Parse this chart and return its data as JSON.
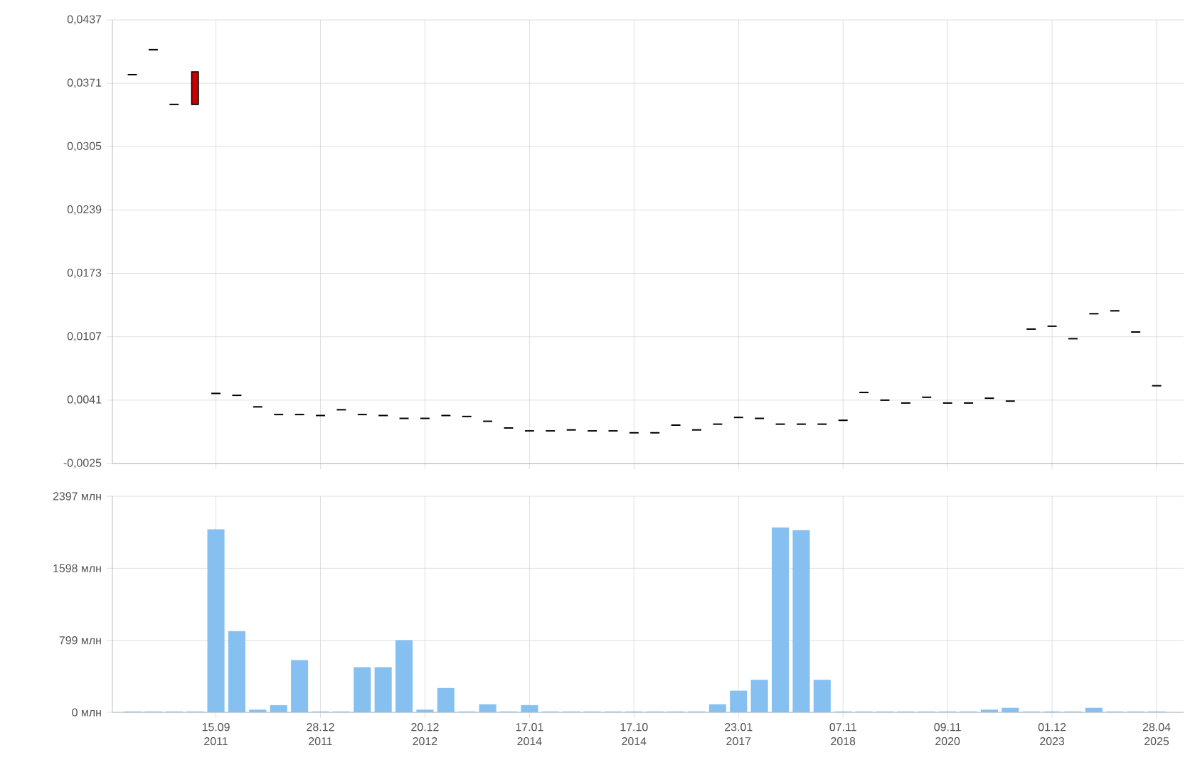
{
  "chart_data": [
    {
      "type": "candlestick",
      "categories": [
        null,
        null,
        null,
        null,
        null,
        null,
        null,
        null,
        null,
        null,
        null,
        null,
        null,
        null,
        null,
        null,
        null,
        null,
        null,
        null,
        null,
        null,
        null,
        null,
        null,
        null,
        null,
        null,
        null,
        null,
        null,
        null,
        null,
        null,
        null,
        null,
        null,
        null,
        null,
        null,
        null,
        null,
        null,
        null,
        null,
        null,
        null,
        null,
        null,
        null
      ],
      "ohlc": [
        [
          0.038,
          0.038,
          0.038,
          0.038
        ],
        [
          0.0406,
          0.0406,
          0.0406,
          0.0406
        ],
        [
          0.0349,
          0.0349,
          0.0349,
          0.0349
        ],
        [
          0.0383,
          0.0383,
          0.0349,
          0.0349
        ],
        [
          0.0048,
          0.0048,
          0.0048,
          0.0048
        ],
        [
          0.0046,
          0.0046,
          0.0046,
          0.0046
        ],
        [
          0.0034,
          0.0034,
          0.0034,
          0.0034
        ],
        [
          0.0026,
          0.0026,
          0.0026,
          0.0026
        ],
        [
          0.0026,
          0.0026,
          0.0026,
          0.0026
        ],
        [
          0.0025,
          0.0025,
          0.0025,
          0.0025
        ],
        [
          0.0031,
          0.0031,
          0.0031,
          0.0031
        ],
        [
          0.0026,
          0.0026,
          0.0026,
          0.0026
        ],
        [
          0.0025,
          0.0025,
          0.0025,
          0.0025
        ],
        [
          0.0022,
          0.0022,
          0.0022,
          0.0022
        ],
        [
          0.0022,
          0.0022,
          0.0022,
          0.0022
        ],
        [
          0.0025,
          0.0025,
          0.0025,
          0.0025
        ],
        [
          0.0024,
          0.0024,
          0.0024,
          0.0024
        ],
        [
          0.0019,
          0.0019,
          0.0019,
          0.0019
        ],
        [
          0.0012,
          0.0012,
          0.0012,
          0.0012
        ],
        [
          0.0009,
          0.0009,
          0.0009,
          0.0009
        ],
        [
          0.0009,
          0.0009,
          0.0009,
          0.0009
        ],
        [
          0.001,
          0.001,
          0.001,
          0.001
        ],
        [
          0.0009,
          0.0009,
          0.0009,
          0.0009
        ],
        [
          0.0009,
          0.0009,
          0.0009,
          0.0009
        ],
        [
          0.0007,
          0.0007,
          0.0007,
          0.0007
        ],
        [
          0.0007,
          0.0007,
          0.0007,
          0.0007
        ],
        [
          0.0015,
          0.0015,
          0.0015,
          0.0015
        ],
        [
          0.001,
          0.001,
          0.001,
          0.001
        ],
        [
          0.0016,
          0.0016,
          0.0016,
          0.0016
        ],
        [
          0.0023,
          0.0023,
          0.0023,
          0.0023
        ],
        [
          0.0022,
          0.0022,
          0.0022,
          0.0022
        ],
        [
          0.0016,
          0.0016,
          0.0016,
          0.0016
        ],
        [
          0.0016,
          0.0016,
          0.0016,
          0.0016
        ],
        [
          0.0016,
          0.0016,
          0.0016,
          0.0016
        ],
        [
          0.002,
          0.002,
          0.002,
          0.002
        ],
        [
          0.0049,
          0.0049,
          0.0049,
          0.0049
        ],
        [
          0.0041,
          0.0041,
          0.0041,
          0.0041
        ],
        [
          0.0038,
          0.0038,
          0.0038,
          0.0038
        ],
        [
          0.0044,
          0.0044,
          0.0044,
          0.0044
        ],
        [
          0.0038,
          0.0038,
          0.0038,
          0.0038
        ],
        [
          0.0038,
          0.0038,
          0.0038,
          0.0038
        ],
        [
          0.0043,
          0.0043,
          0.0043,
          0.0043
        ],
        [
          0.004,
          0.004,
          0.004,
          0.004
        ],
        [
          0.0115,
          0.0115,
          0.0115,
          0.0115
        ],
        [
          0.0118,
          0.0118,
          0.0118,
          0.0118
        ],
        [
          0.0105,
          0.0105,
          0.0105,
          0.0105
        ],
        [
          0.0131,
          0.0131,
          0.0131,
          0.0131
        ],
        [
          0.0134,
          0.0134,
          0.0134,
          0.0134
        ],
        [
          0.0112,
          0.0112,
          0.0112,
          0.0112
        ],
        [
          0.0056,
          0.0056,
          0.0056,
          0.0056
        ]
      ],
      "colors": [
        "#000000",
        "#000000",
        "#000000",
        "#cc0000",
        "#000000",
        "#000000",
        "#000000",
        "#000000",
        "#000000",
        "#000000",
        "#000000",
        "#000000",
        "#000000",
        "#000000",
        "#000000",
        "#000000",
        "#000000",
        "#000000",
        "#000000",
        "#000000",
        "#000000",
        "#000000",
        "#000000",
        "#000000",
        "#000000",
        "#000000",
        "#000000",
        "#000000",
        "#000000",
        "#000000",
        "#000000",
        "#000000",
        "#000000",
        "#000000",
        "#000000",
        "#000000",
        "#000000",
        "#000000",
        "#000000",
        "#000000",
        "#000000",
        "#000000",
        "#000000",
        "#000000",
        "#000000",
        "#000000",
        "#000000",
        "#000000",
        "#000000",
        "#000000"
      ],
      "ylim": [
        -0.0025,
        0.0437
      ],
      "yticks": [
        {
          "value": -0.0025,
          "label": "-0,0025"
        },
        {
          "value": 0.0041,
          "label": "0,0041"
        },
        {
          "value": 0.0107,
          "label": "0,0107"
        },
        {
          "value": 0.0173,
          "label": "0,0173"
        },
        {
          "value": 0.0239,
          "label": "0,0239"
        },
        {
          "value": 0.0305,
          "label": "0,0305"
        },
        {
          "value": 0.0371,
          "label": "0,0371"
        },
        {
          "value": 0.0437,
          "label": "0,0437"
        }
      ],
      "grid": true,
      "tick_labels": "y"
    },
    {
      "type": "bar",
      "categories": [
        null,
        null,
        null,
        null,
        "15.09 2011",
        null,
        null,
        null,
        null,
        "28.12 2011",
        null,
        null,
        null,
        null,
        "20.12 2012",
        null,
        null,
        null,
        null,
        "17.01 2014",
        null,
        null,
        null,
        null,
        "17.10 2014",
        null,
        null,
        null,
        null,
        "23.01 2017",
        null,
        null,
        null,
        null,
        "07.11 2018",
        null,
        null,
        null,
        null,
        "09.11 2020",
        null,
        null,
        null,
        null,
        "01.12 2023",
        null,
        null,
        null,
        null,
        "28.04 2025"
      ],
      "values": [
        10,
        10,
        10,
        10,
        2030,
        900,
        30,
        80,
        580,
        10,
        10,
        500,
        500,
        800,
        30,
        270,
        10,
        90,
        10,
        80,
        10,
        10,
        10,
        10,
        10,
        10,
        10,
        10,
        90,
        240,
        360,
        2050,
        2020,
        360,
        10,
        10,
        10,
        10,
        10,
        10,
        10,
        30,
        50,
        10,
        10,
        10,
        50,
        10,
        10,
        10
      ],
      "color": "#86c0f0",
      "ylim": [
        0,
        2397
      ],
      "yticks": [
        {
          "value": 0,
          "label": "0 млн"
        },
        {
          "value": 799,
          "label": "799 млн"
        },
        {
          "value": 1598,
          "label": "1598 млн"
        },
        {
          "value": 2397,
          "label": "2397 млн"
        }
      ],
      "grid": true
    }
  ]
}
